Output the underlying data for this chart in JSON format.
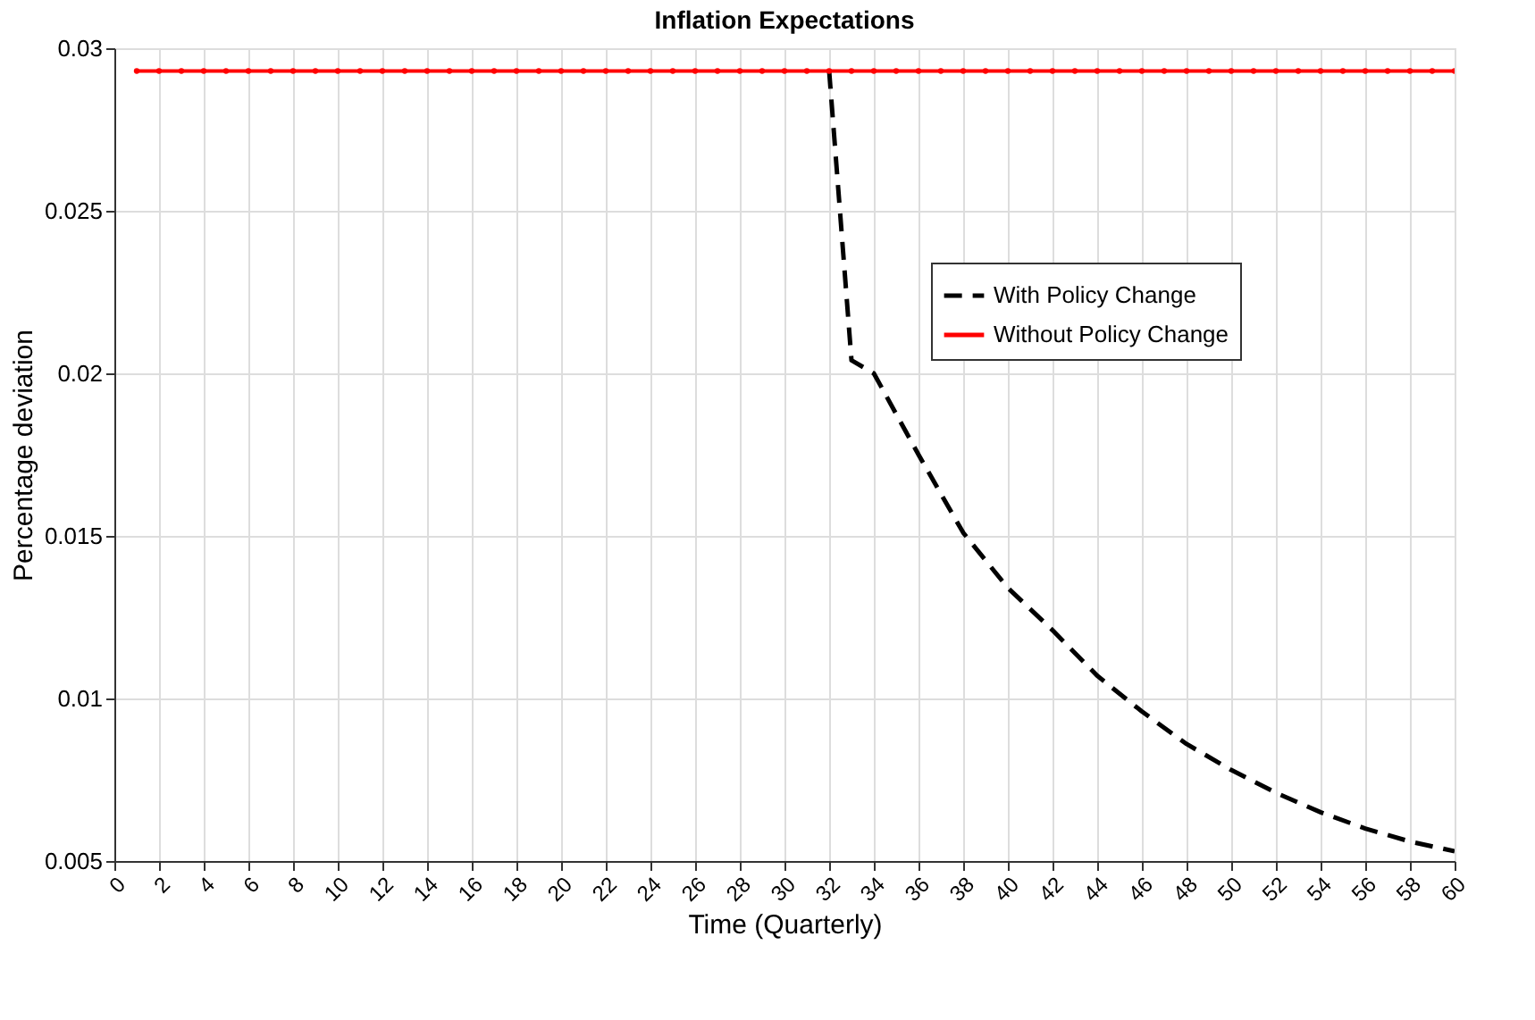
{
  "chart_data": {
    "type": "line",
    "title": "Inflation Expectations",
    "xlabel": "Time (Quarterly)",
    "ylabel": "Percentage deviation",
    "xlim": [
      0,
      60
    ],
    "xticks": [
      0,
      2,
      4,
      6,
      8,
      10,
      12,
      14,
      16,
      18,
      20,
      22,
      24,
      26,
      28,
      30,
      32,
      34,
      36,
      38,
      40,
      42,
      44,
      46,
      48,
      50,
      52,
      54,
      56,
      58,
      60
    ],
    "ylim": [
      0.005,
      0.03
    ],
    "yticks": [
      0.005,
      0.01,
      0.015,
      0.02,
      0.025,
      0.03
    ],
    "grid": true,
    "legend": "top right",
    "series": [
      {
        "name": "With Policy Change",
        "color": "#000000",
        "line_style": "dashed",
        "marker": "none",
        "x": [
          32,
          33,
          34,
          36,
          38,
          40,
          42,
          44,
          46,
          48,
          50,
          52,
          54,
          56,
          58,
          60
        ],
        "values": [
          0.0293,
          0.0204,
          0.02,
          0.0175,
          0.0151,
          0.0134,
          0.0121,
          0.0107,
          0.0096,
          0.0086,
          0.0078,
          0.0071,
          0.0065,
          0.006,
          0.0056,
          0.0053
        ]
      },
      {
        "name": "Without Policy Change",
        "color": "#ff0000",
        "line_style": "solid",
        "marker": "circle",
        "x": [
          1,
          2,
          3,
          4,
          5,
          6,
          7,
          8,
          9,
          10,
          11,
          12,
          13,
          14,
          15,
          16,
          17,
          18,
          19,
          20,
          21,
          22,
          23,
          24,
          25,
          26,
          27,
          28,
          29,
          30,
          31,
          32,
          33,
          34,
          35,
          36,
          37,
          38,
          39,
          40,
          41,
          42,
          43,
          44,
          45,
          46,
          47,
          48,
          49,
          50,
          51,
          52,
          53,
          54,
          55,
          56,
          57,
          58,
          59,
          60
        ],
        "values": [
          0.0293,
          0.0293,
          0.0293,
          0.0293,
          0.0293,
          0.0293,
          0.0293,
          0.0293,
          0.0293,
          0.0293,
          0.0293,
          0.0293,
          0.0293,
          0.0293,
          0.0293,
          0.0293,
          0.0293,
          0.0293,
          0.0293,
          0.0293,
          0.0293,
          0.0293,
          0.0293,
          0.0293,
          0.0293,
          0.0293,
          0.0293,
          0.0293,
          0.0293,
          0.0293,
          0.0293,
          0.0293,
          0.0293,
          0.0293,
          0.0293,
          0.0293,
          0.0293,
          0.0293,
          0.0293,
          0.0293,
          0.0293,
          0.0293,
          0.0293,
          0.0293,
          0.0293,
          0.0293,
          0.0293,
          0.0293,
          0.0293,
          0.0293,
          0.0293,
          0.0293,
          0.0293,
          0.0293,
          0.0293,
          0.0293,
          0.0293,
          0.0293,
          0.0293,
          0.0293
        ]
      }
    ]
  }
}
